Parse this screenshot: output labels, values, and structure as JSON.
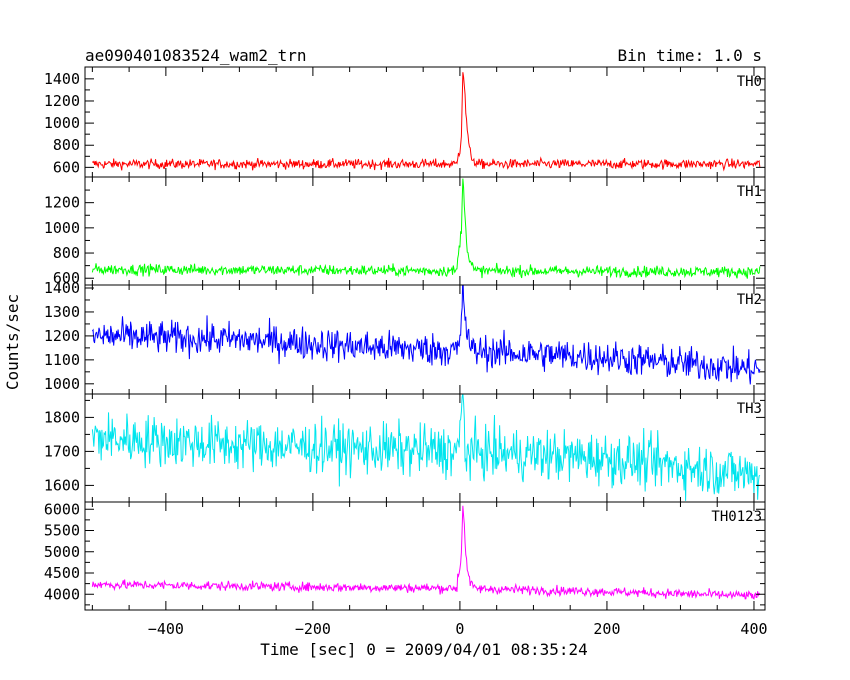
{
  "header": {
    "left": "ae090401083524_wam2_trn",
    "right": "Bin time: 1.0 s"
  },
  "chart_data": {
    "type": "line",
    "xlabel": "Time [sec] 0 = 2009/04/01 08:35:24",
    "ylabel": "Counts/sec",
    "xlim": [
      -510,
      415
    ],
    "x_ticks": [
      -400,
      -200,
      0,
      200,
      400
    ],
    "x_tick_labels": [
      "−400",
      "−200",
      "0",
      "200",
      "400"
    ],
    "x_range": [
      -500,
      408
    ],
    "bin_time_s": 1.0,
    "panels": [
      {
        "name": "TH0",
        "color": "#ff0000",
        "ylim": [
          540,
          1480
        ],
        "yticks": [
          600,
          800,
          1000,
          1200,
          1400
        ],
        "baseline": [
          [
            -500,
            630
          ],
          [
            408,
            630
          ]
        ],
        "noise": 22,
        "burst": [
          [
            -3,
            700
          ],
          [
            0,
            760
          ],
          [
            2,
            900
          ],
          [
            4,
            1480
          ],
          [
            6,
            1350
          ],
          [
            8,
            1100
          ],
          [
            10,
            950
          ],
          [
            12,
            800
          ],
          [
            15,
            700
          ],
          [
            20,
            660
          ]
        ]
      },
      {
        "name": "TH1",
        "color": "#00ff00",
        "ylim": [
          570,
          1380
        ],
        "yticks": [
          600,
          800,
          1000,
          1200
        ],
        "baseline": [
          [
            -500,
            670
          ],
          [
            408,
            650
          ]
        ],
        "noise": 22,
        "burst": [
          [
            -3,
            750
          ],
          [
            0,
            880
          ],
          [
            2,
            1000
          ],
          [
            4,
            1380
          ],
          [
            6,
            1200
          ],
          [
            8,
            1000
          ],
          [
            10,
            850
          ],
          [
            13,
            740
          ],
          [
            18,
            690
          ]
        ]
      },
      {
        "name": "TH2",
        "color": "#0000ff",
        "ylim": [
          970,
          1400
        ],
        "yticks": [
          1000,
          1100,
          1200,
          1300,
          1400
        ],
        "baseline": [
          [
            -500,
            1200
          ],
          [
            -300,
            1185
          ],
          [
            -100,
            1150
          ],
          [
            0,
            1140
          ],
          [
            200,
            1110
          ],
          [
            408,
            1060
          ]
        ],
        "noise": 35,
        "burst": [
          [
            0,
            1180
          ],
          [
            2,
            1260
          ],
          [
            4,
            1400
          ],
          [
            7,
            1290
          ],
          [
            10,
            1200
          ],
          [
            15,
            1160
          ]
        ]
      },
      {
        "name": "TH3",
        "color": "#00e5ee",
        "ylim": [
          1560,
          1860
        ],
        "yticks": [
          1600,
          1700,
          1800
        ],
        "baseline": [
          [
            -500,
            1740
          ],
          [
            -300,
            1720
          ],
          [
            -100,
            1705
          ],
          [
            0,
            1700
          ],
          [
            200,
            1680
          ],
          [
            408,
            1630
          ]
        ],
        "noise": 38,
        "burst": [
          [
            0,
            1760
          ],
          [
            3,
            1860
          ],
          [
            6,
            1790
          ]
        ]
      },
      {
        "name": "TH0123",
        "color": "#ff00ff",
        "ylim": [
          3700,
          6100
        ],
        "yticks": [
          4000,
          4500,
          5000,
          5500,
          6000
        ],
        "baseline": [
          [
            -500,
            4230
          ],
          [
            -200,
            4170
          ],
          [
            0,
            4140
          ],
          [
            200,
            4060
          ],
          [
            408,
            3960
          ]
        ],
        "noise": 55,
        "burst": [
          [
            -3,
            4400
          ],
          [
            0,
            4600
          ],
          [
            2,
            5000
          ],
          [
            4,
            6100
          ],
          [
            6,
            5600
          ],
          [
            8,
            5000
          ],
          [
            10,
            4600
          ],
          [
            13,
            4300
          ],
          [
            18,
            4200
          ]
        ]
      }
    ]
  }
}
